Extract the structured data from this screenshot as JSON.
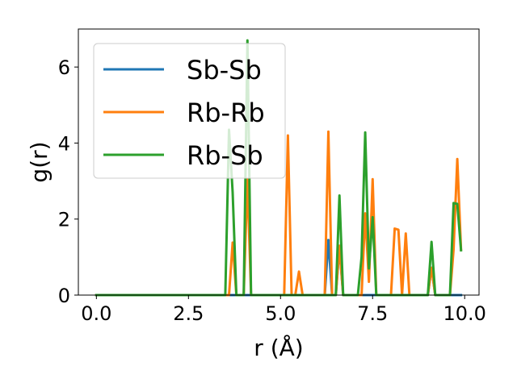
{
  "chart_data": {
    "type": "line",
    "xlabel": "r (Å)",
    "ylabel": "g(r)",
    "xlim": [
      -0.49,
      10.39
    ],
    "ylim": [
      0,
      7.0
    ],
    "xticks": [
      0.0,
      2.5,
      5.0,
      7.5,
      10.0
    ],
    "xtick_labels": [
      "0.0",
      "2.5",
      "5.0",
      "7.5",
      "10.0"
    ],
    "yticks": [
      0,
      2,
      4,
      6
    ],
    "ytick_labels": [
      "0",
      "2",
      "4",
      "6"
    ],
    "grid": false,
    "legend_position": "top-left",
    "series": [
      {
        "name": "Sb-Sb",
        "color": "#1f77b4",
        "points": [
          [
            0,
            0
          ],
          [
            6.2,
            0
          ],
          [
            6.3,
            1.45
          ],
          [
            6.4,
            0
          ],
          [
            6.5,
            0
          ],
          [
            6.6,
            1.25
          ],
          [
            6.7,
            0
          ],
          [
            9.0,
            0
          ],
          [
            9.1,
            0.72
          ],
          [
            9.2,
            0
          ],
          [
            9.9,
            0
          ]
        ]
      },
      {
        "name": "Rb-Rb",
        "color": "#ff7f0e",
        "points": [
          [
            0,
            0
          ],
          [
            3.6,
            0
          ],
          [
            3.7,
            1.38
          ],
          [
            3.8,
            0
          ],
          [
            4.0,
            0
          ],
          [
            4.1,
            3.05
          ],
          [
            4.2,
            0
          ],
          [
            5.1,
            0
          ],
          [
            5.2,
            4.2
          ],
          [
            5.3,
            0
          ],
          [
            5.4,
            0
          ],
          [
            5.5,
            0.62
          ],
          [
            5.6,
            0
          ],
          [
            6.2,
            0
          ],
          [
            6.3,
            4.3
          ],
          [
            6.4,
            0
          ],
          [
            6.5,
            0
          ],
          [
            6.6,
            1.3
          ],
          [
            6.7,
            0
          ],
          [
            7.2,
            0
          ],
          [
            7.3,
            2.15
          ],
          [
            7.4,
            0.35
          ],
          [
            7.5,
            3.05
          ],
          [
            7.6,
            0
          ],
          [
            8.0,
            0
          ],
          [
            8.1,
            1.75
          ],
          [
            8.2,
            1.72
          ],
          [
            8.3,
            0
          ],
          [
            8.4,
            1.62
          ],
          [
            8.5,
            0
          ],
          [
            9.0,
            0
          ],
          [
            9.1,
            0.72
          ],
          [
            9.2,
            0
          ],
          [
            9.6,
            0
          ],
          [
            9.7,
            1.2
          ],
          [
            9.8,
            3.58
          ],
          [
            9.9,
            1.2
          ]
        ]
      },
      {
        "name": "Rb-Sb",
        "color": "#2ca02c",
        "points": [
          [
            0,
            0
          ],
          [
            3.5,
            0
          ],
          [
            3.6,
            4.35
          ],
          [
            3.7,
            2.7
          ],
          [
            3.8,
            0
          ],
          [
            4.0,
            0
          ],
          [
            4.1,
            6.7
          ],
          [
            4.2,
            0
          ],
          [
            6.5,
            0
          ],
          [
            6.6,
            2.62
          ],
          [
            6.7,
            0
          ],
          [
            7.1,
            0
          ],
          [
            7.2,
            1.0
          ],
          [
            7.3,
            4.28
          ],
          [
            7.4,
            0.7
          ],
          [
            7.5,
            2.05
          ],
          [
            7.6,
            0
          ],
          [
            9.0,
            0
          ],
          [
            9.1,
            1.4
          ],
          [
            9.2,
            0
          ],
          [
            9.6,
            0
          ],
          [
            9.7,
            2.42
          ],
          [
            9.8,
            2.4
          ],
          [
            9.9,
            1.18
          ]
        ]
      }
    ]
  }
}
